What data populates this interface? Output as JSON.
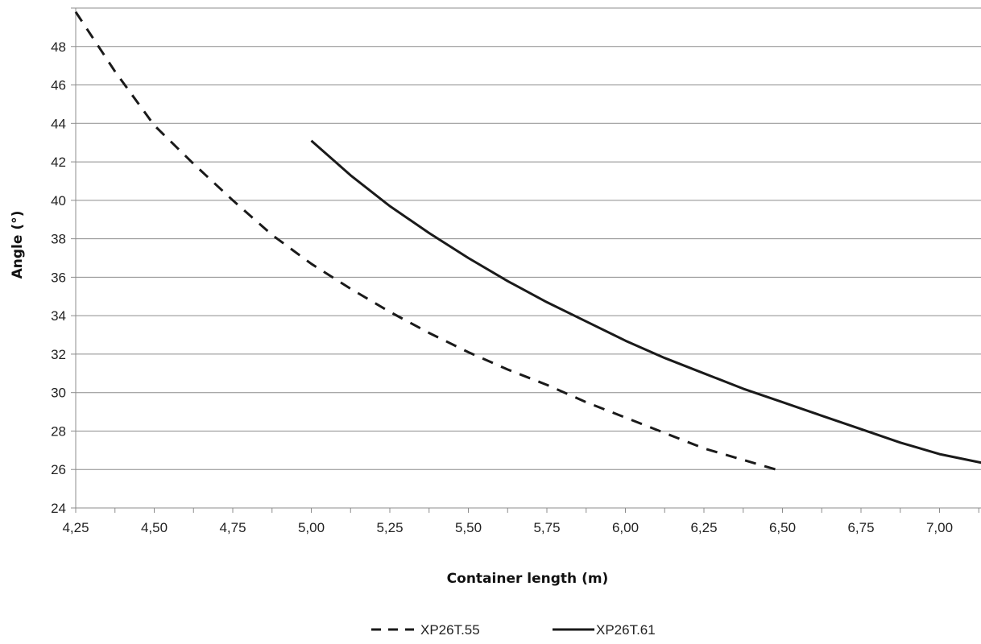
{
  "chart_data": {
    "type": "line",
    "title": "",
    "xlabel": "Container length (m)",
    "ylabel": "Angle (°)",
    "xlim": [
      4.25,
      7.15
    ],
    "ylim": [
      24,
      50
    ],
    "x_ticks": [
      "4,25",
      "4,50",
      "4,75",
      "5,00",
      "5,25",
      "5,50",
      "5,75",
      "6,00",
      "6,25",
      "6,50",
      "6,75",
      "7,00"
    ],
    "y_ticks": [
      "24",
      "26",
      "28",
      "30",
      "32",
      "34",
      "36",
      "38",
      "40",
      "42",
      "44",
      "46",
      "48"
    ],
    "grid": "horizontal",
    "legend_position": "bottom",
    "series": [
      {
        "name": "XP26T.55",
        "style": "dashed",
        "color": "#1a1a1a",
        "x": [
          4.25,
          4.375,
          4.5,
          4.625,
          4.75,
          4.875,
          5.0,
          5.125,
          5.25,
          5.375,
          5.5,
          5.625,
          5.75,
          5.875,
          6.0,
          6.125,
          6.25,
          6.375,
          6.5
        ],
        "y": [
          49.8,
          46.7,
          43.9,
          41.9,
          40.0,
          38.2,
          36.7,
          35.4,
          34.2,
          33.1,
          32.1,
          31.2,
          30.4,
          29.5,
          28.7,
          27.9,
          27.1,
          26.5,
          25.9
        ]
      },
      {
        "name": "XP26T.61",
        "style": "solid",
        "color": "#1a1a1a",
        "x": [
          5.0,
          5.125,
          5.25,
          5.375,
          5.5,
          5.625,
          5.75,
          5.875,
          6.0,
          6.125,
          6.25,
          6.375,
          6.5,
          6.625,
          6.75,
          6.875,
          7.0,
          7.15
        ],
        "y": [
          43.1,
          41.3,
          39.7,
          38.3,
          37.0,
          35.8,
          34.7,
          33.7,
          32.7,
          31.8,
          31.0,
          30.2,
          29.5,
          28.8,
          28.1,
          27.4,
          26.8,
          26.3
        ]
      }
    ]
  }
}
